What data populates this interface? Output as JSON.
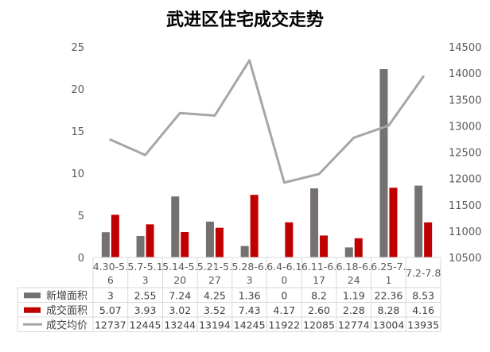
{
  "chart_data": {
    "type": "bar",
    "title": "武进区住宅成交走势",
    "categories": [
      "4.30-5.6",
      "5.7-5.13",
      "5.14-5.20",
      "5.21-5.27",
      "5.28-6.3",
      "6.4-6.10",
      "6.11-6.17",
      "6.18-6.24",
      "6.25-7.1",
      "7.2-7.8"
    ],
    "category_labels": [
      [
        "4.30-5.",
        "6"
      ],
      [
        "5.7-5.1",
        "3"
      ],
      [
        "5.14-5.",
        "20"
      ],
      [
        "5.21-5.",
        "27"
      ],
      [
        "5.28-6.",
        "3"
      ],
      [
        "6.4-6.1",
        "0"
      ],
      [
        "6.11-6.",
        "17"
      ],
      [
        "6.18-6.",
        "24"
      ],
      [
        "6.25-7.",
        "1"
      ],
      [
        "7.2-7.8"
      ]
    ],
    "series": [
      {
        "name": "新增面积",
        "kind": "bar",
        "axis": "left",
        "color": "#767171",
        "values": [
          3,
          2.55,
          7.24,
          4.25,
          1.36,
          0,
          8.2,
          1.19,
          22.36,
          8.53
        ]
      },
      {
        "name": "成交面积",
        "kind": "bar",
        "axis": "left",
        "color": "#C00000",
        "values": [
          5.07,
          3.93,
          3.02,
          3.52,
          7.43,
          4.17,
          2.6,
          2.28,
          8.28,
          4.16
        ]
      },
      {
        "name": "成交均价",
        "kind": "line",
        "axis": "right",
        "color": "#A6A6A6",
        "values": [
          12737,
          12445,
          13244,
          13194,
          14245,
          11922,
          12085,
          12774,
          13004,
          13935
        ]
      }
    ],
    "table_values": [
      [
        "3",
        "2.55",
        "7.24",
        "4.25",
        "1.36",
        "0",
        "8.2",
        "1.19",
        "22.36",
        "8.53"
      ],
      [
        "5.07",
        "3.93",
        "3.02",
        "3.52",
        "7.43",
        "4.17",
        "2.60",
        "2.28",
        "8.28",
        "4.16"
      ],
      [
        "12737",
        "12445",
        "13244",
        "13194",
        "14245",
        "11922",
        "12085",
        "12774",
        "13004",
        "13935"
      ]
    ],
    "y_left": {
      "min": 0,
      "max": 25,
      "step": 5,
      "ticks": [
        "0",
        "5",
        "10",
        "15",
        "20",
        "25"
      ]
    },
    "y_right": {
      "min": 10500,
      "max": 14500,
      "step": 500,
      "ticks": [
        "10500",
        "11000",
        "11500",
        "12000",
        "12500",
        "13000",
        "13500",
        "14000",
        "14500"
      ]
    },
    "grid": false,
    "legend": "data-table-below"
  }
}
